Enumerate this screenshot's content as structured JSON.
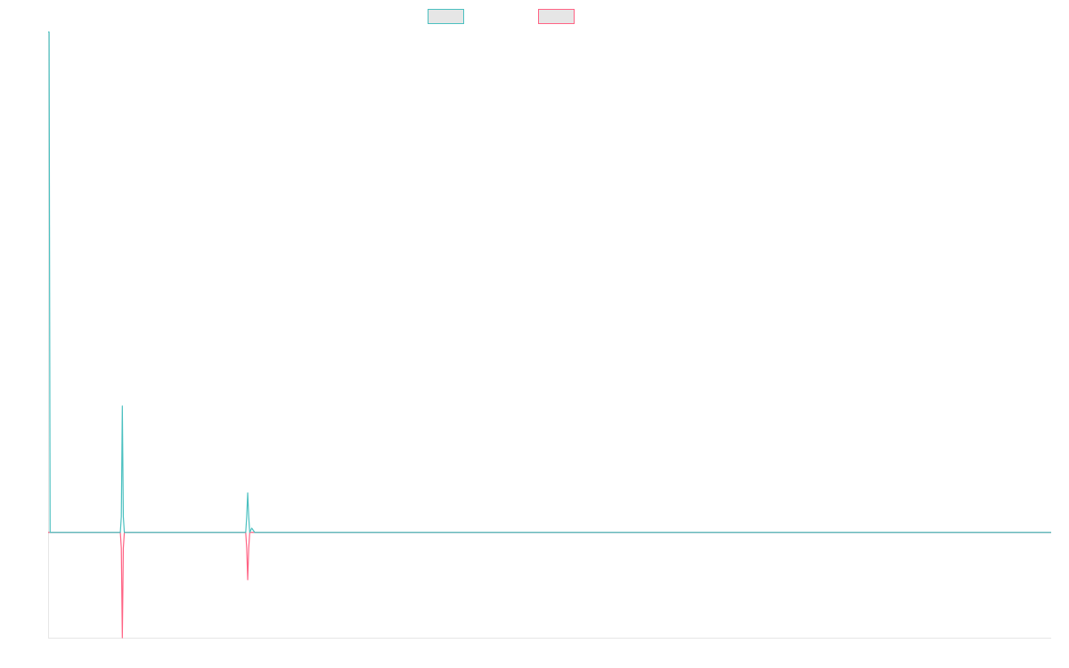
{
  "chart_data": {
    "type": "line",
    "title": "",
    "xlabel": "",
    "ylabel": "",
    "legend_position": "top-center",
    "grid": false,
    "x_labels_visible": false,
    "y_labels_visible": false,
    "xlim": [
      0,
      1000
    ],
    "ylim": [
      -20,
      95
    ],
    "baseline": 0,
    "series": [
      {
        "color": "#4bc0c0",
        "fill": "#e6e6e6",
        "x": [
          0,
          1,
          2,
          3,
          70,
          72,
          73,
          74,
          75,
          76,
          78,
          195,
          197,
          198,
          199,
          200,
          201,
          203,
          206,
          1000
        ],
        "values": [
          95,
          95,
          0,
          0,
          0,
          0,
          3,
          24,
          3,
          0,
          0,
          0,
          0,
          3,
          7.5,
          3,
          0,
          0.8,
          0,
          0
        ]
      },
      {
        "color": "#ff6384",
        "fill": "#e6e6e6",
        "x": [
          0,
          70,
          72,
          73,
          74,
          75,
          76,
          78,
          195,
          197,
          198,
          199,
          200,
          201,
          203,
          206,
          1000
        ],
        "values": [
          0,
          0,
          0,
          -3,
          -20,
          -3,
          0,
          0,
          0,
          0,
          -3,
          -9,
          -3,
          0,
          0,
          0,
          0
        ]
      }
    ]
  }
}
